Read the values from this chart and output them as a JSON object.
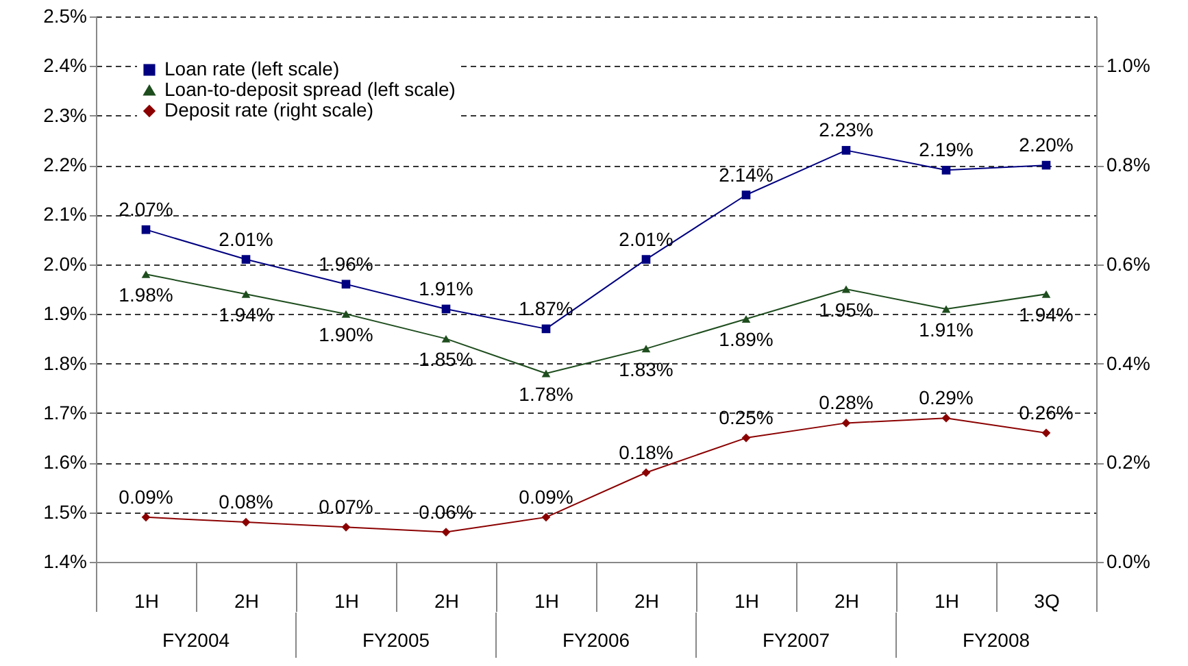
{
  "chart_data": {
    "type": "line",
    "categories": [
      "1H",
      "2H",
      "1H",
      "2H",
      "1H",
      "2H",
      "1H",
      "2H",
      "1H",
      "3Q"
    ],
    "annotations": [
      "FY2004",
      "FY2005",
      "FY2006",
      "FY2007",
      "FY2008"
    ],
    "series": [
      {
        "name": "Loan rate (left scale)",
        "color": "#000080",
        "marker": "square",
        "values": [
          2.07,
          2.01,
          1.96,
          1.91,
          1.87,
          2.01,
          2.14,
          2.23,
          2.19,
          2.2
        ],
        "value_labels": [
          "2.07%",
          "2.01%",
          "1.96%",
          "1.91%",
          "1.87%",
          "2.01%",
          "2.14%",
          "2.23%",
          "2.19%",
          "2.20%"
        ]
      },
      {
        "name": "Loan-to-deposit spread (left scale)",
        "color": "#1e4d1e",
        "marker": "triangle",
        "values": [
          1.98,
          1.94,
          1.9,
          1.85,
          1.78,
          1.83,
          1.89,
          1.95,
          1.91,
          1.94
        ],
        "value_labels": [
          "1.98%",
          "1.94%",
          "1.90%",
          "1.85%",
          "1.78%",
          "1.83%",
          "1.89%",
          "1.95%",
          "1.91%",
          "1.94%"
        ]
      },
      {
        "name": "Deposit rate (right scale)",
        "color": "#8b0000",
        "marker": "diamond",
        "axis": "y2",
        "values": [
          0.09,
          0.08,
          0.07,
          0.06,
          0.09,
          0.18,
          0.25,
          0.28,
          0.29,
          0.26
        ],
        "value_labels": [
          "0.09%",
          "0.08%",
          "0.07%",
          "0.06%",
          "0.09%",
          "0.18%",
          "0.25%",
          "0.28%",
          "0.29%",
          "0.26%"
        ]
      }
    ],
    "ylim": [
      1.4,
      2.5
    ],
    "yticks": [
      {
        "value": 1.4,
        "label": "1.4%"
      },
      {
        "value": 1.5,
        "label": "1.5%"
      },
      {
        "value": 1.6,
        "label": "1.6%"
      },
      {
        "value": 1.7,
        "label": "1.7%"
      },
      {
        "value": 1.8,
        "label": "1.8%"
      },
      {
        "value": 1.9,
        "label": "1.9%"
      },
      {
        "value": 2.0,
        "label": "2.0%"
      },
      {
        "value": 2.1,
        "label": "2.1%"
      },
      {
        "value": 2.2,
        "label": "2.2%"
      },
      {
        "value": 2.3,
        "label": "2.3%"
      },
      {
        "value": 2.4,
        "label": "2.4%"
      },
      {
        "value": 2.5,
        "label": "2.5%"
      }
    ],
    "y2lim": [
      0,
      1.1
    ],
    "y2ticks": [
      {
        "value": 0,
        "label": "0.0%"
      },
      {
        "value": 0.2,
        "label": "0.2%"
      },
      {
        "value": 0.4,
        "label": "0.4%"
      },
      {
        "value": 0.6,
        "label": "0.6%"
      },
      {
        "value": 0.8,
        "label": "0.8%"
      },
      {
        "value": 1.0,
        "label": "1.0%"
      }
    ],
    "grid": "y",
    "legend": "top left",
    "line_style": "solid"
  }
}
